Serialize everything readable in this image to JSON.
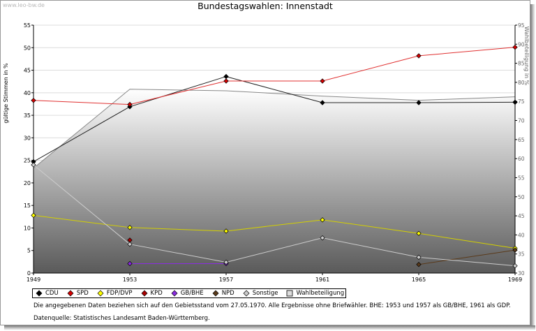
{
  "watermark": "www.leo-bw.de",
  "chart_data": {
    "type": "line",
    "title": "Bundestagswahlen: Innenstadt",
    "ylabel": "gültige Stimmen in %",
    "y2label": "Wahlbeteiligung in %",
    "x": [
      "1949",
      "1953",
      "1957",
      "1961",
      "1965",
      "1969"
    ],
    "ylim": [
      0,
      55
    ],
    "yticks": [
      "0",
      "5",
      "10",
      "15",
      "20",
      "25",
      "30",
      "35",
      "40",
      "45",
      "50",
      "55"
    ],
    "y2lim": [
      30,
      95
    ],
    "y2ticks": [
      "30",
      "35",
      "40",
      "45",
      "50",
      "55",
      "60",
      "65",
      "70",
      "75",
      "80",
      "85",
      "90",
      "95"
    ],
    "grid": true,
    "legend_position": "bottom",
    "series": [
      {
        "name": "CDU",
        "color": "#000000",
        "line": "#222222",
        "values": [
          24.7,
          36.9,
          43.6,
          37.8,
          37.8,
          37.9
        ]
      },
      {
        "name": "SPD",
        "color": "#d40000",
        "line": "#e03030",
        "values": [
          38.3,
          37.4,
          42.6,
          42.6,
          48.2,
          50.1
        ]
      },
      {
        "name": "FDP/DVP",
        "color": "#ffff00",
        "line": "#d4d000",
        "values": [
          12.8,
          10.1,
          9.3,
          11.8,
          8.8,
          5.5
        ]
      },
      {
        "name": "KPD",
        "color": "#aa0000",
        "line": "#aa0000",
        "values": [
          null,
          7.3,
          null,
          null,
          null,
          null
        ]
      },
      {
        "name": "GB/BHE",
        "color": "#8a2be2",
        "line": "#8a2be2",
        "values": [
          null,
          2.1,
          2.1,
          null,
          null,
          null
        ]
      },
      {
        "name": "NPD",
        "color": "#5a3a1a",
        "line": "#5a3a1a",
        "values": [
          null,
          null,
          null,
          null,
          1.9,
          5.1
        ]
      },
      {
        "name": "Sonstige",
        "color": "#cccccc",
        "line": "#cccccc",
        "values": [
          24.0,
          6.4,
          2.4,
          7.8,
          3.5,
          1.6
        ]
      }
    ],
    "turnout": {
      "name": "Wahlbeteiligung",
      "axis": "right",
      "values": [
        57.5,
        78.2,
        77.8,
        76.4,
        75.3,
        76.2
      ]
    }
  },
  "note": "Die angegebenen Daten beziehen sich auf den Gebietsstand vom 27.05.1970. Alle Ergebnisse ohne Briefwähler. BHE: 1953 und 1957 als GB/BHE, 1961 als GDP.",
  "source": "Datenquelle: Statistisches Landesamt Baden-Württemberg."
}
